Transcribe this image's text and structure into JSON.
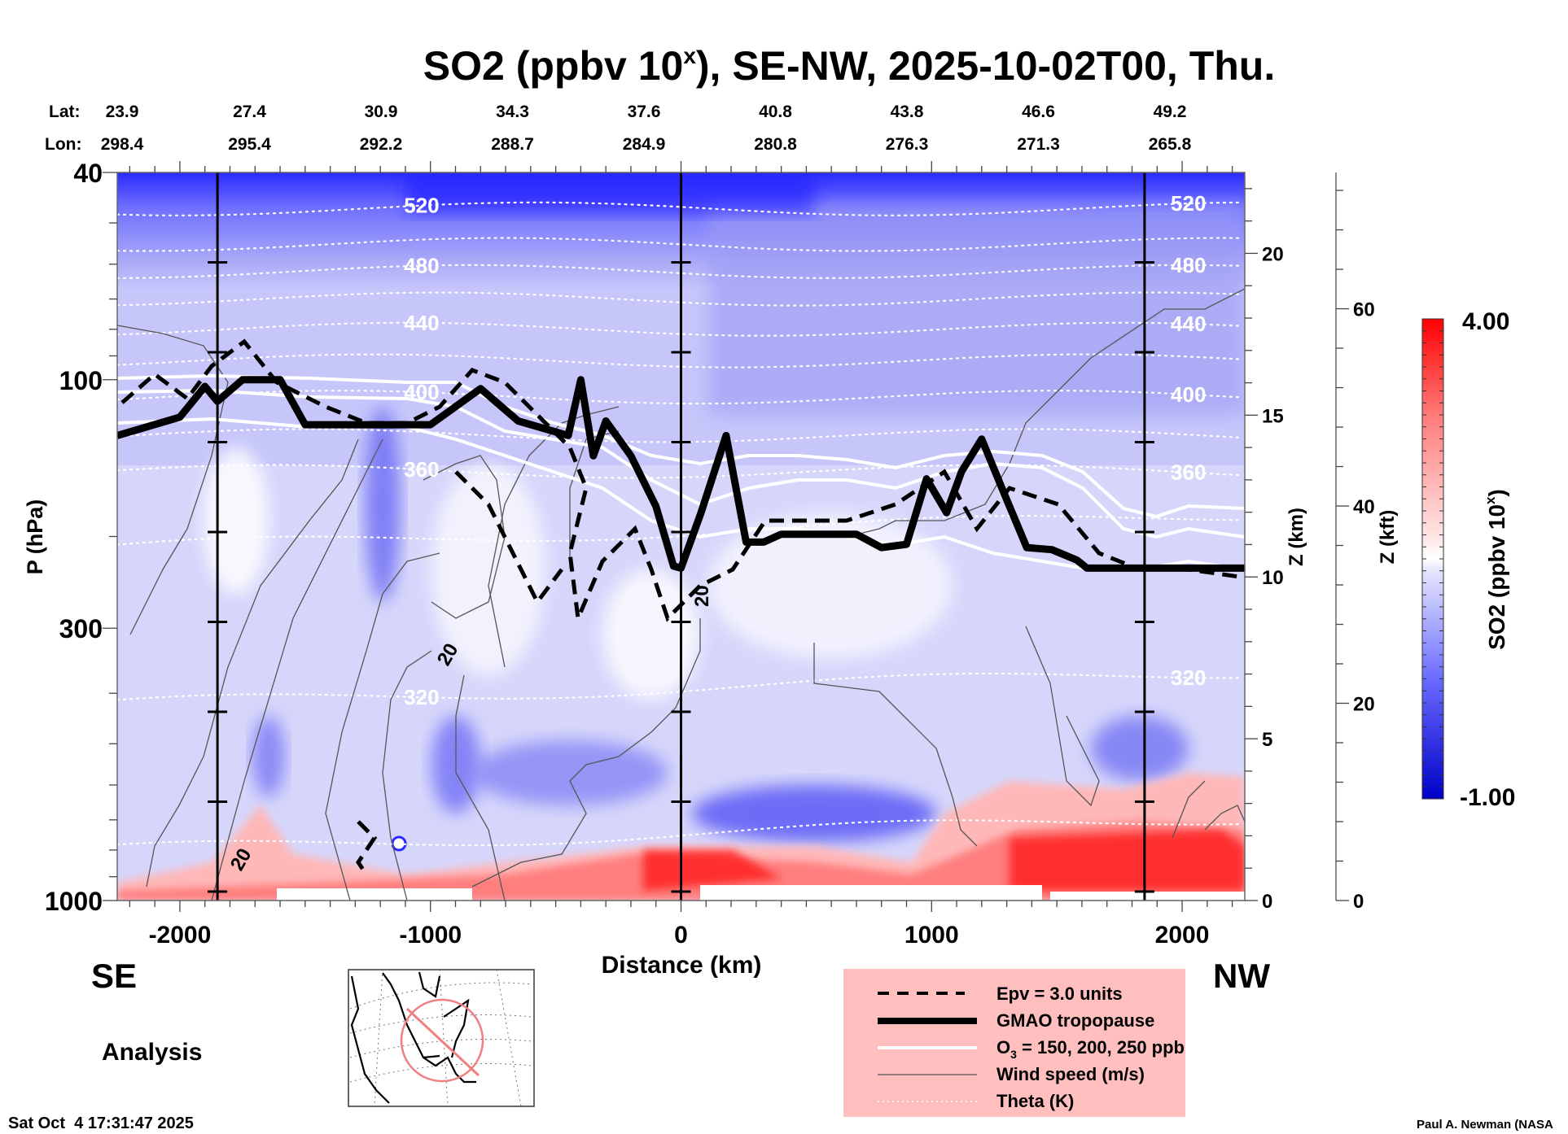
{
  "chart_data": {
    "type": "heatmap",
    "title": "SO2 (ppbv 10^x), SE-NW, 2025-10-02T00, Thu.",
    "title_parts": {
      "main": "SO2 (ppbv 10",
      "sup": "x",
      "rest": "), SE-NW, 2025-10-02T00, Thu."
    },
    "xlabel": "Distance (km)",
    "ylabel": "P (hPa)",
    "y2label": "Z (km)",
    "y3label": "Z (kft)",
    "xlim": [
      -2250,
      2250
    ],
    "ylim_hpa": [
      1000,
      40
    ],
    "x_ticks": [
      -2000,
      -1000,
      0,
      1000,
      2000
    ],
    "x_tick_labels": [
      "-2000",
      "-1000",
      "0",
      "1000",
      "2000"
    ],
    "p_ticks": [
      40,
      100,
      300,
      1000
    ],
    "p_tick_labels": [
      "40",
      "100",
      "300",
      "1000"
    ],
    "z_km_ticks": [
      0,
      5,
      10,
      15,
      20
    ],
    "z_km_tick_labels": [
      "0",
      "5",
      "10",
      "15",
      "20"
    ],
    "z_kft_ticks": [
      0,
      20,
      40,
      60
    ],
    "z_kft_tick_labels": [
      "0",
      "20",
      "40",
      "60"
    ],
    "lat_label": "Lat:",
    "lon_label": "Lon:",
    "lat": [
      "23.9",
      "27.4",
      "30.9",
      "34.3",
      "37.6",
      "40.8",
      "43.8",
      "46.6",
      "49.2"
    ],
    "lon": [
      "298.4",
      "295.4",
      "292.2",
      "288.7",
      "284.9",
      "280.8",
      "276.3",
      "271.3",
      "265.8"
    ],
    "latlon_distance_km": [
      -2230,
      -1700,
      -1150,
      -600,
      -50,
      500,
      1050,
      1600,
      2130
    ],
    "vertical_ref_lines_km": [
      -1850,
      0,
      1850
    ],
    "end_labels": {
      "left": "SE",
      "right": "NW"
    },
    "colorbar": {
      "label": "SO2 (ppbv 10^x)",
      "label_main": "SO2 (ppbv 10",
      "label_sup": "x",
      "label_rest": ")",
      "min": -1.0,
      "max": 4.0,
      "min_label": "-1.00",
      "max_label": "4.00",
      "colors": [
        "#0000cc",
        "#ffffff",
        "#ff0000"
      ],
      "white_at": 1.5
    },
    "theta_contours_K": [
      {
        "value": 520,
        "p_hpa": 47,
        "labeled": true
      },
      {
        "value": 500,
        "p_hpa": 55,
        "labeled": false
      },
      {
        "value": 480,
        "p_hpa": 62,
        "labeled": true
      },
      {
        "value": 460,
        "p_hpa": 70,
        "labeled": false
      },
      {
        "value": 440,
        "p_hpa": 80,
        "labeled": true
      },
      {
        "value": 420,
        "p_hpa": 92,
        "labeled": false
      },
      {
        "value": 400,
        "p_hpa": 108,
        "labeled": true
      },
      {
        "value": 380,
        "p_hpa": 128,
        "labeled": false
      },
      {
        "value": 360,
        "p_hpa": 150,
        "labeled": true
      },
      {
        "value": 340,
        "p_hpa": 210,
        "labeled": false
      },
      {
        "value": 320,
        "p_hpa": 420,
        "labeled": true
      },
      {
        "value": 300,
        "p_hpa": 800,
        "labeled": false
      }
    ],
    "tropopause_hpa": {
      "x_km": [
        -2250,
        -2000,
        -1900,
        -1850,
        -1750,
        -1600,
        -1500,
        -1200,
        -1000,
        -800,
        -650,
        -450,
        -400,
        -350,
        -300,
        -200,
        -100,
        -30,
        0,
        80,
        180,
        260,
        330,
        400,
        700,
        800,
        900,
        980,
        1060,
        1120,
        1200,
        1300,
        1380,
        1480,
        1580,
        1620,
        1700,
        2250
      ],
      "p_hpa": [
        128,
        118,
        103,
        110,
        100,
        100,
        122,
        122,
        122,
        104,
        120,
        128,
        100,
        140,
        120,
        140,
        175,
        228,
        230,
        180,
        128,
        205,
        205,
        198,
        198,
        210,
        207,
        155,
        180,
        150,
        130,
        170,
        210,
        212,
        222,
        230,
        230,
        230
      ]
    },
    "wind_speed_contour_label": "20",
    "legend": [
      {
        "label": "Epv = 3.0 units",
        "style": "dashed-thick-black"
      },
      {
        "label": "GMAO tropopause",
        "style": "very-thick-black"
      },
      {
        "label_main": "O",
        "label_sub": "3",
        "label_rest": " = 150, 200, 250 ppb",
        "style": "thick-white"
      },
      {
        "label": "Wind speed (m/s)",
        "style": "thin-gray"
      },
      {
        "label": "Theta (K)",
        "style": "dotted-white"
      }
    ],
    "legend_bg": "#ffbfbf",
    "inset_map": {
      "name": "North America section locator",
      "line_color": "#f08080"
    }
  },
  "footer": {
    "analysis_label": "Analysis",
    "timestamp": "Sat Oct  4 17:31:47 2025",
    "credit": "Paul A. Newman (NASA"
  }
}
